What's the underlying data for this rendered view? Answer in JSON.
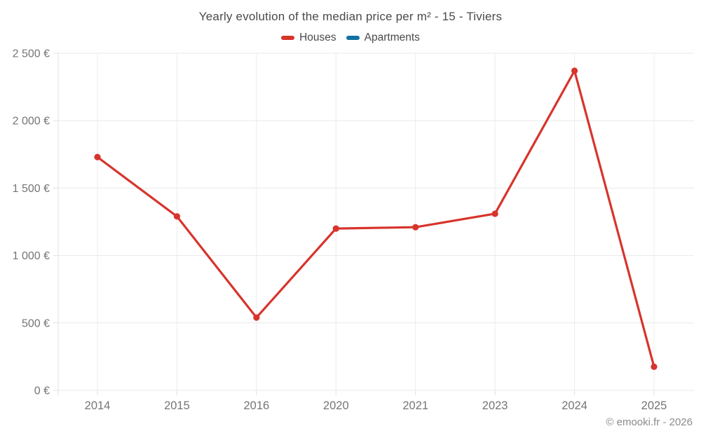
{
  "header": {
    "title": "Yearly evolution of the median price per m² - 15 - Tiviers"
  },
  "legend": {
    "items": [
      {
        "label": "Houses",
        "color": "#d7342c"
      },
      {
        "label": "Apartments",
        "color": "#1272a2"
      }
    ]
  },
  "footer": {
    "credit": "© emooki.fr - 2026"
  },
  "colors": {
    "background": "#ffffff",
    "houses_series": "#d7342c",
    "apartments_series": "#1272a2",
    "h_gridline": "#e9e9e9",
    "v_gridline": "#ededed",
    "axis_line": "#e0e0e0",
    "tick_label": "#757575",
    "title_text": "#4a4a4a",
    "credit_text": "#8a8a8a"
  },
  "chart_data": {
    "type": "line",
    "title": "Yearly evolution of the median price per m² - 15 - Tiviers",
    "categories": [
      "2014",
      "2015",
      "2016",
      "2020",
      "2021",
      "2023",
      "2024",
      "2025"
    ],
    "series": [
      {
        "name": "Houses",
        "color": "#d7342c",
        "values": [
          1730,
          1290,
          540,
          1200,
          1210,
          1310,
          2370,
          175
        ]
      },
      {
        "name": "Apartments",
        "color": "#1272a2",
        "values": []
      }
    ],
    "xlabel": "",
    "ylabel": "",
    "ylim": [
      0,
      2500
    ],
    "yticks": [
      {
        "value": 0,
        "label": "0 €"
      },
      {
        "value": 500,
        "label": "500 €"
      },
      {
        "value": 1000,
        "label": "1 000 €"
      },
      {
        "value": 1500,
        "label": "1 500 €"
      },
      {
        "value": 2000,
        "label": "2 000 €"
      },
      {
        "value": 2500,
        "label": "2 500 €"
      }
    ],
    "grid": true,
    "legend_position": "top",
    "annotations": [
      "© emooki.fr - 2026"
    ]
  }
}
